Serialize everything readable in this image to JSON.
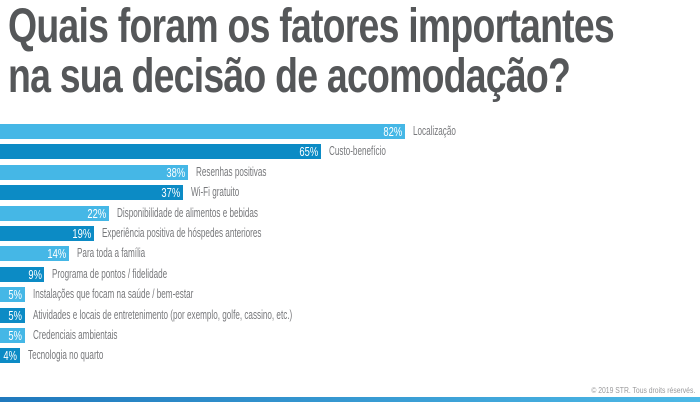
{
  "title": {
    "line1": "Quais foram os fatores importantes",
    "line2": "na sua decisão de acomodação?"
  },
  "footer": {
    "copyright": "© 2019 STR. Tous droits réservés."
  },
  "colors": {
    "light_blue": "#45b7e6",
    "dark_blue": "#0c8bc5",
    "title_gray": "#555759",
    "label_gray": "#77787b",
    "value_text": "#ffffff"
  },
  "chart_data": {
    "type": "bar",
    "orientation": "horizontal",
    "unit": "%",
    "title": "Quais foram os fatores importantes na sua decisão de acomodação?",
    "value_label_position": "inside-end",
    "category_label_position": "outside-end",
    "grid": false,
    "legend": false,
    "categories": [
      "Localização",
      "Custo-benefício",
      "Resenhas positivas",
      "Wi-Fi gratuito",
      "Disponibilidade de alimentos e bebidas",
      "Experiência positiva de hóspedes anteriores",
      "Para toda a família",
      "Programa de pontos / fidelidade",
      "Instalações que focam na saúde / bem-estar",
      "Atividades e locais de entretenimento (por exemplo, golfe, cassino, etc.)",
      "Credenciais ambientais",
      "Tecnologia no quarto"
    ],
    "values": [
      82,
      65,
      38,
      37,
      22,
      19,
      14,
      9,
      5,
      5,
      5,
      4
    ],
    "bar_colors": [
      "#45b7e6",
      "#0c8bc5",
      "#45b7e6",
      "#0c8bc5",
      "#45b7e6",
      "#0c8bc5",
      "#45b7e6",
      "#0c8bc5",
      "#45b7e6",
      "#0c8bc5",
      "#45b7e6",
      "#0c8bc5"
    ]
  }
}
